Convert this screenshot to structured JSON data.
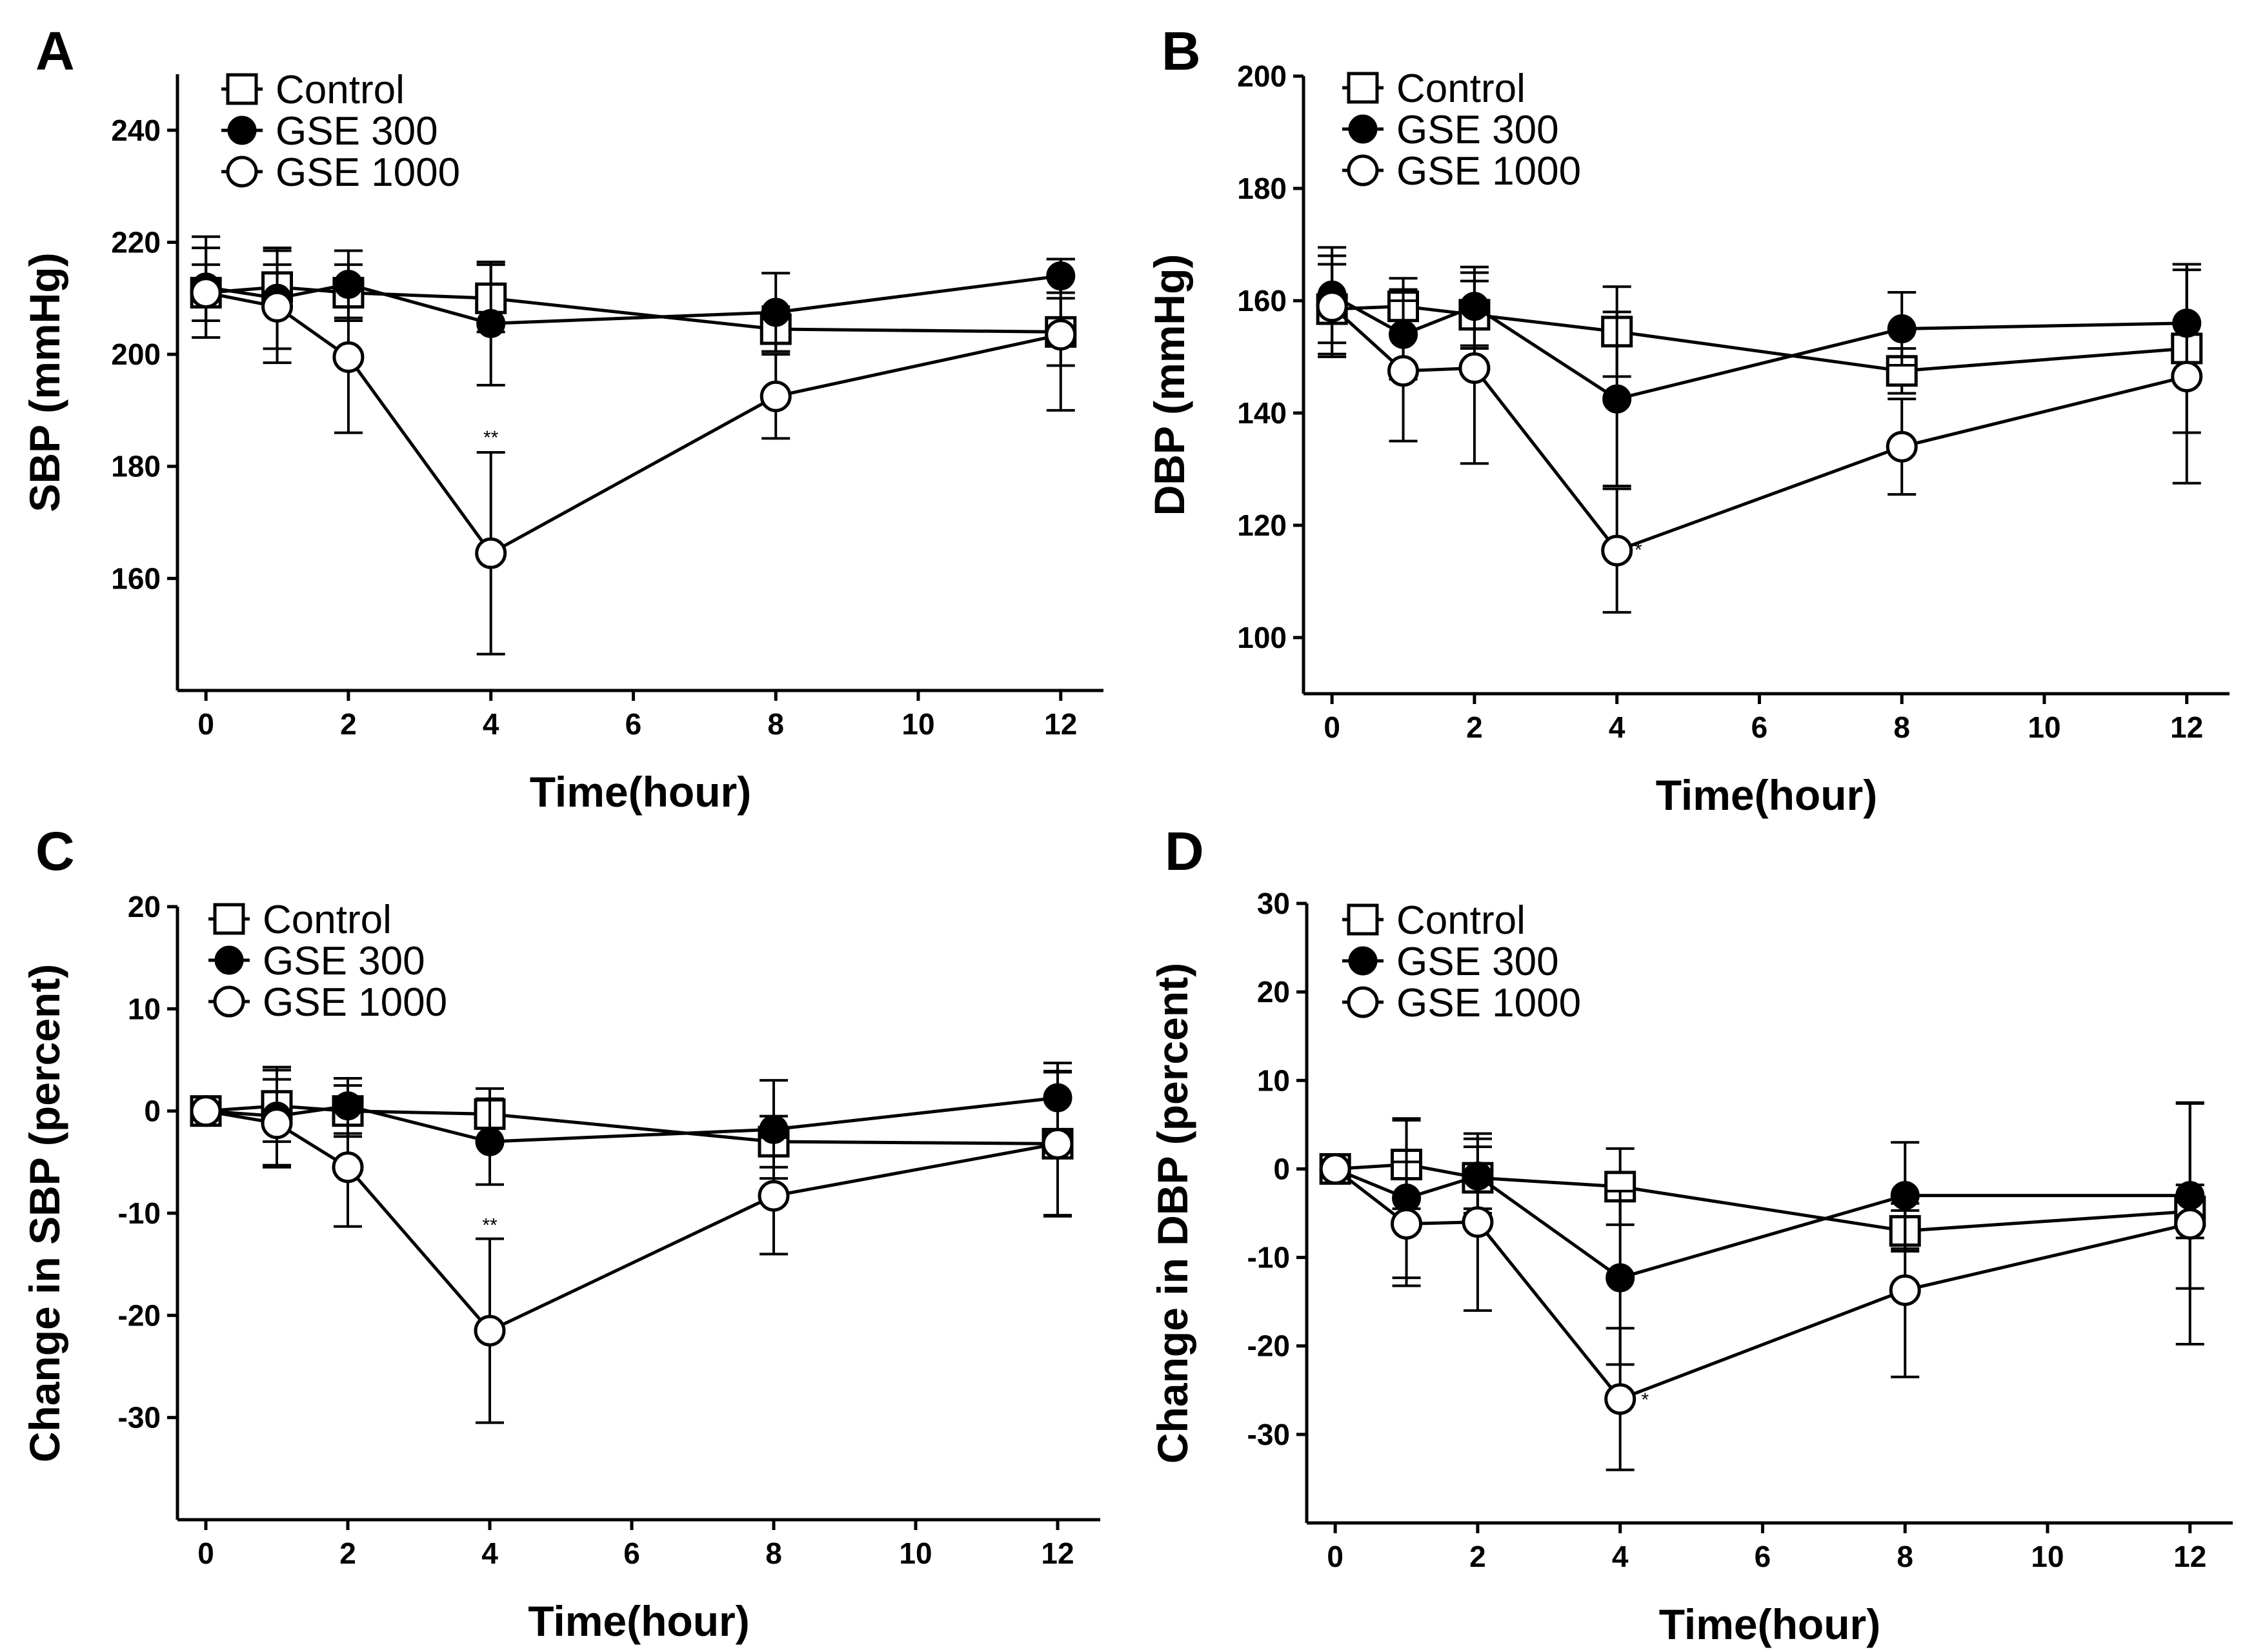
{
  "legend": [
    {
      "name": "Control",
      "marker": "open-square"
    },
    {
      "name": "GSE 300",
      "marker": "filled-circle"
    },
    {
      "name": "GSE 1000",
      "marker": "open-circle"
    }
  ],
  "chart_data": [
    {
      "type": "line",
      "panel": "A",
      "xlabel": "Time(hour)",
      "ylabel": "SBP (mmHg)",
      "xlim": [
        -0.4,
        12.6
      ],
      "ylim": [
        140,
        250
      ],
      "xticks": [
        0,
        2,
        4,
        6,
        8,
        10,
        12
      ],
      "yticks": [
        160,
        180,
        200,
        220,
        240
      ],
      "legend_position": "top-left",
      "x": [
        0,
        1,
        2,
        4,
        8,
        12
      ],
      "series": [
        {
          "name": "Control",
          "marker": "open-square",
          "values": [
            211,
            212,
            211,
            210,
            204.5,
            204
          ],
          "errors": [
            5,
            4,
            5,
            6,
            4,
            6
          ]
        },
        {
          "name": "GSE 300",
          "marker": "filled-circle",
          "values": [
            212,
            210,
            212.5,
            205.5,
            207.5,
            214
          ],
          "errors": [
            9,
            9,
            6,
            11,
            7,
            3
          ]
        },
        {
          "name": "GSE 1000",
          "marker": "open-circle",
          "values": [
            211,
            208.5,
            199.5,
            164.5,
            192.5,
            203.5
          ],
          "errors": [
            8,
            10,
            13.5,
            18,
            7.5,
            13.5
          ]
        }
      ],
      "annotations": [
        {
          "x": 4,
          "y": 184,
          "text": "**"
        }
      ]
    },
    {
      "type": "line",
      "panel": "B",
      "xlabel": "Time(hour)",
      "ylabel": "DBP (mmHg)",
      "xlim": [
        -0.4,
        12.6
      ],
      "ylim": [
        90,
        200
      ],
      "xticks": [
        0,
        2,
        4,
        6,
        8,
        10,
        12
      ],
      "yticks": [
        100,
        120,
        140,
        160,
        180,
        200
      ],
      "legend_position": "top-left",
      "x": [
        0,
        1,
        2,
        4,
        8,
        12
      ],
      "series": [
        {
          "name": "Control",
          "marker": "open-square",
          "values": [
            158.5,
            159,
            157.5,
            154.5,
            147.5,
            151.5
          ],
          "errors": [
            8,
            5,
            6,
            8,
            4,
            15
          ]
        },
        {
          "name": "GSE 300",
          "marker": "filled-circle",
          "values": [
            161,
            154,
            159,
            142.5,
            155,
            156
          ],
          "errors": [
            8.5,
            8,
            7,
            15.5,
            6.5,
            10.5
          ]
        },
        {
          "name": "GSE 1000",
          "marker": "open-circle",
          "values": [
            159,
            147.5,
            148,
            115.5,
            134,
            146.5
          ],
          "errors": [
            9,
            12.5,
            17,
            11,
            8.5,
            19
          ]
        }
      ],
      "annotations": [
        {
          "x": 4.3,
          "y": 114.5,
          "text": "*"
        }
      ]
    },
    {
      "type": "line",
      "panel": "C",
      "xlabel": "Time(hour)",
      "ylabel": "Change in SBP (percent)",
      "xlim": [
        -0.4,
        12.6
      ],
      "ylim": [
        -40,
        20
      ],
      "xticks": [
        0,
        2,
        4,
        6,
        8,
        10,
        12
      ],
      "yticks": [
        -30,
        -20,
        -10,
        0,
        10,
        20
      ],
      "legend_position": "top-left",
      "x": [
        0,
        1,
        2,
        4,
        8,
        12
      ],
      "series": [
        {
          "name": "Control",
          "marker": "open-square",
          "values": [
            0,
            0.5,
            0,
            -0.3,
            -3,
            -3.2
          ],
          "errors": [
            0,
            3.5,
            2.5,
            2.5,
            2.5,
            7
          ]
        },
        {
          "name": "GSE 300",
          "marker": "filled-circle",
          "values": [
            0,
            -0.5,
            0.5,
            -3,
            -1.8,
            1.3
          ],
          "errors": [
            0,
            4.8,
            2.7,
            4.2,
            4.8,
            3.4
          ]
        },
        {
          "name": "GSE 1000",
          "marker": "open-circle",
          "values": [
            0,
            -1.2,
            -5.5,
            -21.5,
            -8.3,
            -3.2
          ],
          "errors": [
            0,
            4.3,
            5.8,
            9,
            5.7,
            7.1
          ]
        }
      ],
      "annotations": [
        {
          "x": 4,
          "y": -11.8,
          "text": "**"
        }
      ]
    },
    {
      "type": "line",
      "panel": "D",
      "xlabel": "Time(hour)",
      "ylabel": "Change in DBP (percent)",
      "xlim": [
        -0.4,
        12.6
      ],
      "ylim": [
        -40,
        30
      ],
      "xticks": [
        0,
        2,
        4,
        6,
        8,
        10,
        12
      ],
      "yticks": [
        -30,
        -20,
        -10,
        0,
        10,
        20,
        30
      ],
      "legend_position": "top-left",
      "x": [
        0,
        1,
        2,
        4,
        8,
        12
      ],
      "series": [
        {
          "name": "Control",
          "marker": "open-square",
          "values": [
            0,
            0.5,
            -1,
            -2,
            -7,
            -4.8
          ],
          "errors": [
            0,
            5,
            3.5,
            4.3,
            2.3,
            3
          ]
        },
        {
          "name": "GSE 300",
          "marker": "filled-circle",
          "values": [
            0,
            -3.3,
            -0.8,
            -12.3,
            -3,
            -3
          ],
          "errors": [
            0,
            9,
            4.2,
            9.8,
            6,
            10.5
          ]
        },
        {
          "name": "GSE 1000",
          "marker": "open-circle",
          "values": [
            0,
            -6.2,
            -6,
            -26,
            -13.7,
            -6.2
          ],
          "errors": [
            0,
            7,
            10,
            8,
            9.8,
            13.6
          ]
        }
      ],
      "annotations": [
        {
          "x": 4.35,
          "y": -26.8,
          "text": "*"
        }
      ]
    }
  ]
}
